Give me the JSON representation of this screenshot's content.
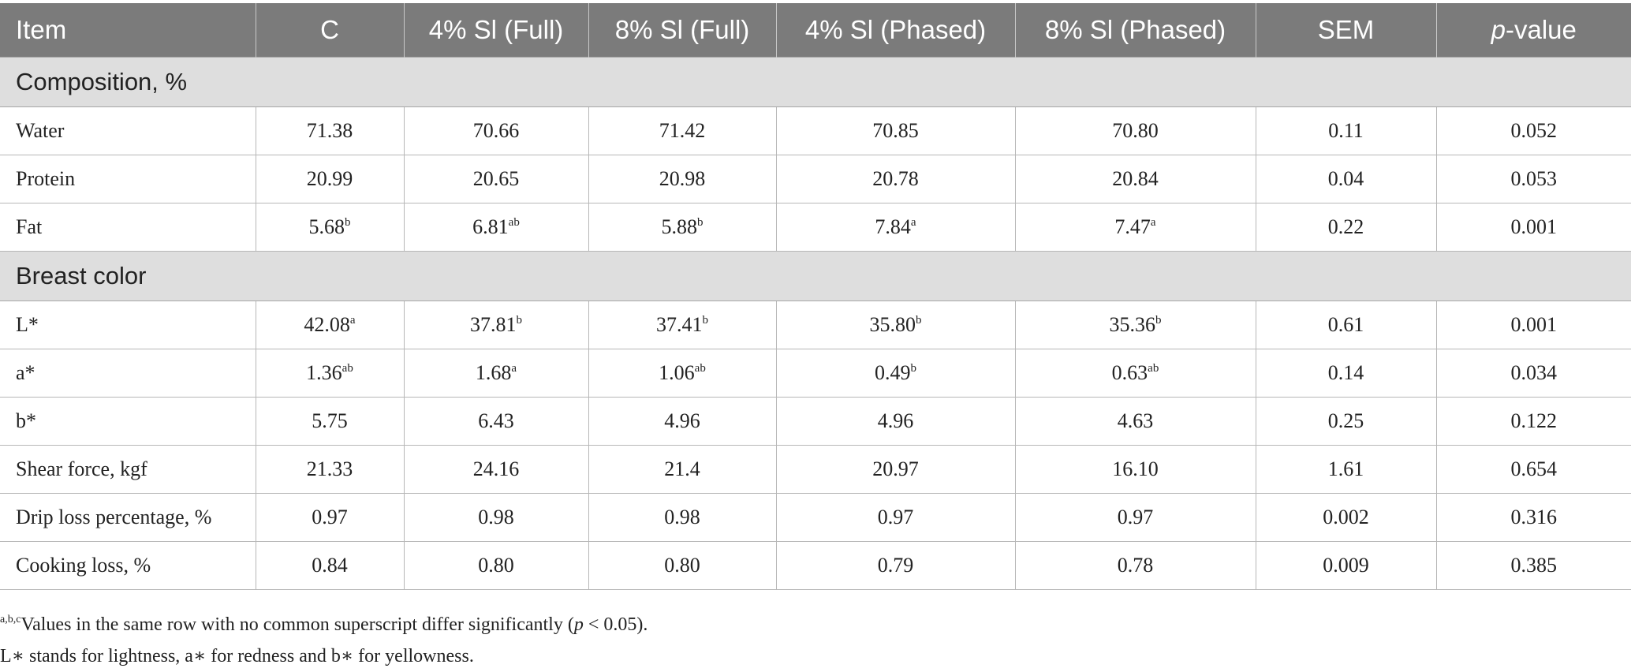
{
  "table": {
    "headers": [
      "Item",
      "C",
      "4% Sl (Full)",
      "8% Sl (Full)",
      "4% Sl (Phased)",
      "8% Sl (Phased)",
      "SEM",
      "p-value"
    ],
    "pvalue_header": {
      "italic_part": "p",
      "rest": "-value"
    },
    "sections": [
      {
        "title": "Composition, %",
        "rows": [
          {
            "item": "Water",
            "cells": [
              [
                "71.38",
                ""
              ],
              [
                "70.66",
                ""
              ],
              [
                "71.42",
                ""
              ],
              [
                "70.85",
                ""
              ],
              [
                "70.80",
                ""
              ],
              [
                "0.11",
                ""
              ],
              [
                "0.052",
                ""
              ]
            ]
          },
          {
            "item": "Protein",
            "cells": [
              [
                "20.99",
                ""
              ],
              [
                "20.65",
                ""
              ],
              [
                "20.98",
                ""
              ],
              [
                "20.78",
                ""
              ],
              [
                "20.84",
                ""
              ],
              [
                "0.04",
                ""
              ],
              [
                "0.053",
                ""
              ]
            ]
          },
          {
            "item": "Fat",
            "cells": [
              [
                "5.68",
                "b"
              ],
              [
                "6.81",
                "ab"
              ],
              [
                "5.88",
                "b"
              ],
              [
                "7.84",
                "a"
              ],
              [
                "7.47",
                "a"
              ],
              [
                "0.22",
                ""
              ],
              [
                "0.001",
                ""
              ]
            ]
          }
        ]
      },
      {
        "title": "Breast color",
        "rows": [
          {
            "item": "L*",
            "cells": [
              [
                "42.08",
                "a"
              ],
              [
                "37.81",
                "b"
              ],
              [
                "37.41",
                "b"
              ],
              [
                "35.80",
                "b"
              ],
              [
                "35.36",
                "b"
              ],
              [
                "0.61",
                ""
              ],
              [
                "0.001",
                ""
              ]
            ]
          },
          {
            "item": "a*",
            "cells": [
              [
                "1.36",
                "ab"
              ],
              [
                "1.68",
                "a"
              ],
              [
                "1.06",
                "ab"
              ],
              [
                "0.49",
                "b"
              ],
              [
                "0.63",
                "ab"
              ],
              [
                "0.14",
                ""
              ],
              [
                "0.034",
                ""
              ]
            ]
          },
          {
            "item": "b*",
            "cells": [
              [
                "5.75",
                ""
              ],
              [
                "6.43",
                ""
              ],
              [
                "4.96",
                ""
              ],
              [
                "4.96",
                ""
              ],
              [
                "4.63",
                ""
              ],
              [
                "0.25",
                ""
              ],
              [
                "0.122",
                ""
              ]
            ]
          },
          {
            "item": "Shear force, kgf",
            "cells": [
              [
                "21.33",
                ""
              ],
              [
                "24.16",
                ""
              ],
              [
                "21.4",
                ""
              ],
              [
                "20.97",
                ""
              ],
              [
                "16.10",
                ""
              ],
              [
                "1.61",
                ""
              ],
              [
                "0.654",
                ""
              ]
            ]
          },
          {
            "item": "Drip loss percentage, %",
            "cells": [
              [
                "0.97",
                ""
              ],
              [
                "0.98",
                ""
              ],
              [
                "0.98",
                ""
              ],
              [
                "0.97",
                ""
              ],
              [
                "0.97",
                ""
              ],
              [
                "0.002",
                ""
              ],
              [
                "0.316",
                ""
              ]
            ]
          },
          {
            "item": "Cooking loss, %",
            "cells": [
              [
                "0.84",
                ""
              ],
              [
                "0.80",
                ""
              ],
              [
                "0.80",
                ""
              ],
              [
                "0.79",
                ""
              ],
              [
                "0.78",
                ""
              ],
              [
                "0.009",
                ""
              ],
              [
                "0.385",
                ""
              ]
            ]
          }
        ]
      }
    ]
  },
  "footnotes": {
    "note1_sup": "a,b,c",
    "note1_text_a": "Values in the same row with no common superscript differ significantly (",
    "note1_italic": "p",
    "note1_text_b": " < 0.05).",
    "note2": "L∗ stands for lightness, a∗ for redness and b∗ for yellowness."
  },
  "colors": {
    "header_bg": "#7b7b7b",
    "section_bg": "#dedede",
    "border": "#b7b7b7"
  }
}
